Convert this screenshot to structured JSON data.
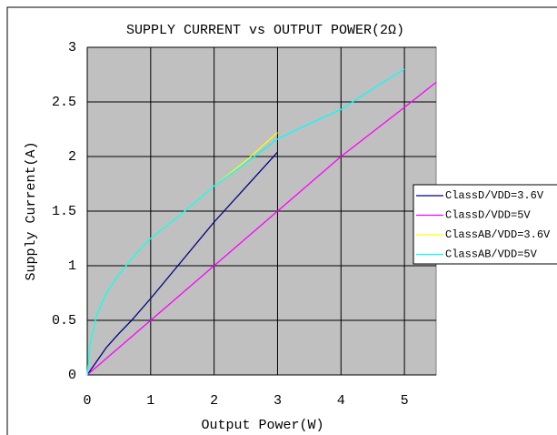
{
  "chart_data": {
    "type": "line",
    "title": "SUPPLY CURRENT vs OUTPUT POWER(2Ω)",
    "x_label": "Output Power(W)",
    "y_label": "Supply Current(A)",
    "xlim": [
      0,
      5.5
    ],
    "xticks": [
      0,
      1,
      2,
      3,
      4,
      5
    ],
    "ylim": [
      0,
      3
    ],
    "yticks": [
      0,
      0.5,
      1,
      1.5,
      2,
      2.5,
      3
    ],
    "grid": true,
    "legend": "right",
    "series": [
      {
        "name": "ClassD/VDD=3.6V",
        "color": "#000080",
        "x": [
          0,
          0.3,
          0.5,
          0.7,
          1,
          1.5,
          2,
          2.5,
          3
        ],
        "values": [
          0,
          0.25,
          0.38,
          0.5,
          0.7,
          1.05,
          1.4,
          1.72,
          2.04
        ]
      },
      {
        "name": "ClassD/VDD=5V",
        "color": "#ff00ff",
        "x": [
          0,
          1,
          2,
          3,
          4,
          5,
          5.5
        ],
        "values": [
          0,
          0.5,
          1,
          1.5,
          2,
          2.45,
          2.68
        ]
      },
      {
        "name": "ClassAB/VDD=3.6V",
        "color": "#ffff00",
        "x": [
          0,
          0.05,
          0.15,
          0.3,
          0.5,
          0.75,
          1,
          1.5,
          2,
          2.5,
          3
        ],
        "values": [
          0,
          0.3,
          0.55,
          0.75,
          0.92,
          1.1,
          1.25,
          1.48,
          1.73,
          1.96,
          2.22
        ]
      },
      {
        "name": "ClassAB/VDD=5V",
        "color": "#00ffff",
        "x": [
          0,
          0.05,
          0.15,
          0.3,
          0.5,
          0.75,
          1,
          1.5,
          2,
          2.5,
          3,
          3.5,
          4,
          4.5,
          5
        ],
        "values": [
          0,
          0.3,
          0.55,
          0.75,
          0.92,
          1.1,
          1.25,
          1.48,
          1.73,
          1.94,
          2.16,
          2.3,
          2.43,
          2.62,
          2.8
        ]
      }
    ]
  }
}
